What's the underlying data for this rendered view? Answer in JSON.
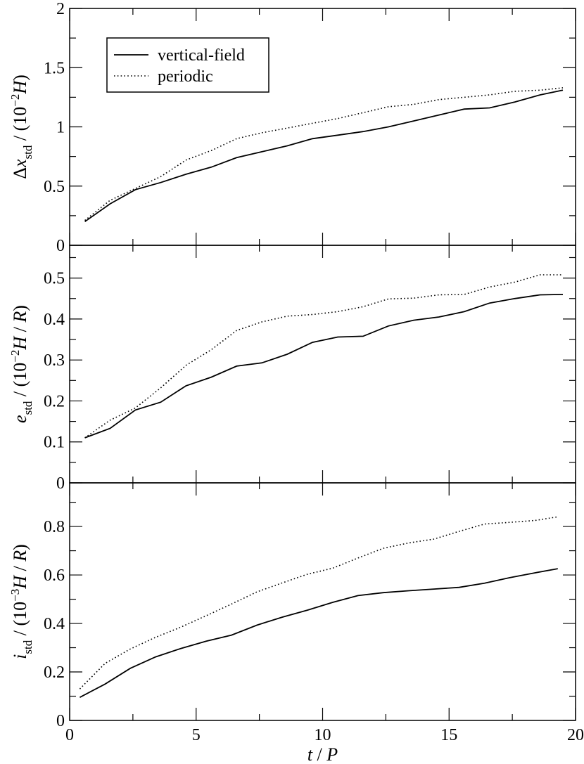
{
  "chart_data": [
    {
      "type": "line",
      "panel": "top",
      "ylabel_parts": [
        "Δ",
        "x",
        "std",
        " / (10",
        "−2",
        "H",
        ")"
      ],
      "ylim": [
        0,
        2
      ],
      "yticks": [
        0,
        0.5,
        1,
        1.5,
        2
      ],
      "ytick_labels": [
        "0",
        "0.5",
        "1",
        "1.5",
        "2"
      ],
      "xlim": [
        0,
        20
      ],
      "legend": {
        "position": "top-left",
        "entries": [
          "vertical-field",
          "periodic"
        ]
      },
      "series": [
        {
          "name": "vertical-field",
          "style": "solid",
          "x": [
            0.6,
            1.6,
            2.6,
            3.6,
            4.6,
            5.6,
            6.6,
            7.6,
            8.6,
            9.6,
            10.6,
            11.6,
            12.6,
            13.6,
            14.6,
            15.6,
            16.6,
            17.6,
            18.6,
            19.5
          ],
          "y": [
            0.2,
            0.35,
            0.47,
            0.53,
            0.6,
            0.66,
            0.74,
            0.79,
            0.84,
            0.9,
            0.93,
            0.96,
            1.0,
            1.05,
            1.1,
            1.15,
            1.16,
            1.21,
            1.27,
            1.31
          ]
        },
        {
          "name": "periodic",
          "style": "dotted",
          "x": [
            0.6,
            1.6,
            2.6,
            3.6,
            4.6,
            5.6,
            6.6,
            7.6,
            8.6,
            9.6,
            10.6,
            11.6,
            12.6,
            13.6,
            14.6,
            15.6,
            16.6,
            17.6,
            18.6,
            19.5
          ],
          "y": [
            0.21,
            0.38,
            0.48,
            0.58,
            0.72,
            0.8,
            0.9,
            0.95,
            0.99,
            1.03,
            1.07,
            1.12,
            1.17,
            1.19,
            1.23,
            1.25,
            1.27,
            1.3,
            1.31,
            1.33
          ]
        }
      ]
    },
    {
      "type": "line",
      "panel": "middle",
      "ylabel_parts": [
        "e",
        "std",
        " / (10",
        "−2",
        "H",
        " / ",
        "R",
        ")"
      ],
      "ylim": [
        0,
        0.58
      ],
      "yticks": [
        0,
        0.1,
        0.2,
        0.3,
        0.4,
        0.5
      ],
      "ytick_labels": [
        "0",
        "0.1",
        "0.2",
        "0.3",
        "0.4",
        "0.5"
      ],
      "xlim": [
        0,
        20
      ],
      "series": [
        {
          "name": "vertical-field",
          "style": "solid",
          "x": [
            0.6,
            1.6,
            2.6,
            3.6,
            4.6,
            5.6,
            6.6,
            7.6,
            8.6,
            9.6,
            10.6,
            11.6,
            12.6,
            13.6,
            14.6,
            15.6,
            16.6,
            17.6,
            18.6,
            19.5
          ],
          "y": [
            0.11,
            0.133,
            0.178,
            0.197,
            0.237,
            0.258,
            0.285,
            0.293,
            0.314,
            0.343,
            0.356,
            0.358,
            0.383,
            0.397,
            0.405,
            0.418,
            0.439,
            0.45,
            0.459,
            0.46
          ]
        },
        {
          "name": "periodic",
          "style": "dotted",
          "x": [
            0.6,
            1.6,
            2.6,
            3.6,
            4.6,
            5.6,
            6.6,
            7.6,
            8.6,
            9.6,
            10.6,
            11.6,
            12.6,
            13.6,
            14.6,
            15.6,
            16.6,
            17.6,
            18.6,
            19.5
          ],
          "y": [
            0.11,
            0.153,
            0.183,
            0.232,
            0.287,
            0.325,
            0.372,
            0.393,
            0.407,
            0.411,
            0.418,
            0.43,
            0.449,
            0.451,
            0.459,
            0.46,
            0.478,
            0.49,
            0.508,
            0.508
          ]
        }
      ]
    },
    {
      "type": "line",
      "panel": "bottom",
      "ylabel_parts": [
        "i",
        "std",
        " / (10",
        "−3",
        "H",
        " / ",
        "R",
        ")"
      ],
      "ylim": [
        0,
        0.98
      ],
      "yticks": [
        0,
        0.2,
        0.4,
        0.6,
        0.8
      ],
      "ytick_labels": [
        "0",
        "0.2",
        "0.4",
        "0.6",
        "0.8"
      ],
      "xlim": [
        0,
        20
      ],
      "xticks": [
        0,
        5,
        10,
        15,
        20
      ],
      "xtick_labels": [
        "0",
        "5",
        "10",
        "15",
        "20"
      ],
      "xlabel_parts": [
        "t",
        " / ",
        "P"
      ],
      "series": [
        {
          "name": "vertical-field",
          "style": "solid",
          "x": [
            0.4,
            1.4,
            2.4,
            3.4,
            4.4,
            5.4,
            6.4,
            7.4,
            8.4,
            9.4,
            10.4,
            11.4,
            12.4,
            13.4,
            14.4,
            15.4,
            16.4,
            17.4,
            18.4,
            19.3
          ],
          "y": [
            0.095,
            0.15,
            0.215,
            0.262,
            0.297,
            0.327,
            0.352,
            0.393,
            0.426,
            0.455,
            0.487,
            0.515,
            0.527,
            0.535,
            0.542,
            0.549,
            0.566,
            0.589,
            0.609,
            0.626
          ]
        },
        {
          "name": "periodic",
          "style": "dotted",
          "x": [
            0.4,
            1.4,
            2.4,
            3.4,
            4.4,
            5.4,
            6.4,
            7.4,
            8.4,
            9.4,
            10.4,
            11.4,
            12.4,
            13.4,
            14.4,
            15.4,
            16.4,
            17.4,
            18.4,
            19.3
          ],
          "y": [
            0.13,
            0.235,
            0.295,
            0.343,
            0.385,
            0.432,
            0.48,
            0.53,
            0.567,
            0.603,
            0.628,
            0.67,
            0.71,
            0.732,
            0.748,
            0.78,
            0.81,
            0.817,
            0.825,
            0.84
          ]
        }
      ]
    }
  ]
}
